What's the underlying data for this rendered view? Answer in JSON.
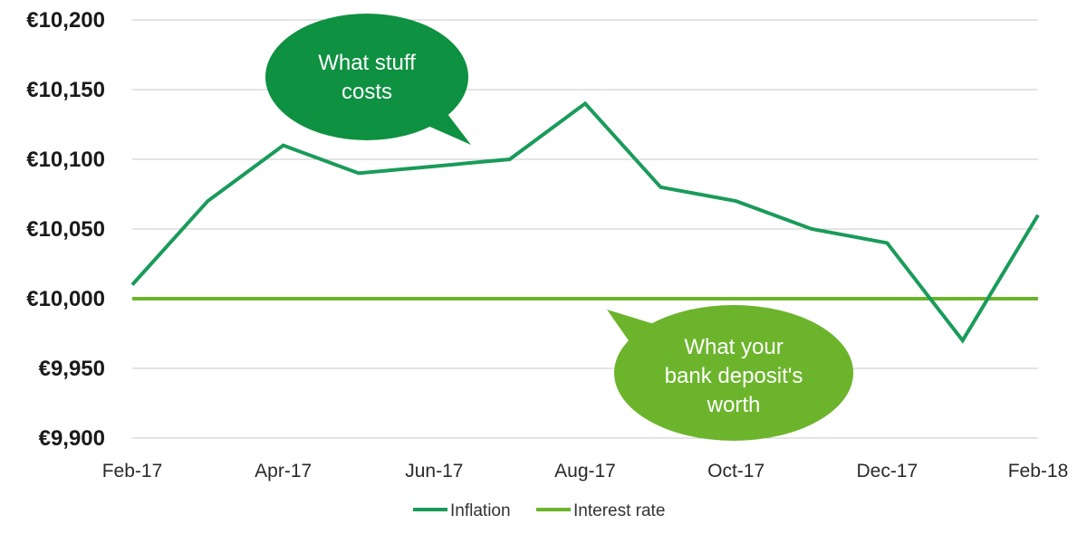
{
  "chart_data": {
    "type": "line",
    "x": [
      "Feb-17",
      "Mar-17",
      "Apr-17",
      "May-17",
      "Jun-17",
      "Jul-17",
      "Aug-17",
      "Sep-17",
      "Oct-17",
      "Nov-17",
      "Dec-17",
      "Jan-18",
      "Feb-18"
    ],
    "x_tick_labels": [
      "Feb-17",
      "Apr-17",
      "Jun-17",
      "Aug-17",
      "Oct-17",
      "Dec-17",
      "Feb-18"
    ],
    "y_tick_labels": [
      "€10,200",
      "€10,150",
      "€10,100",
      "€10,050",
      "€10,000",
      "€9,950",
      "€9,900"
    ],
    "y_ticks": [
      10200,
      10150,
      10100,
      10050,
      10000,
      9950,
      9900
    ],
    "ylim": [
      9900,
      10200
    ],
    "grid": true,
    "legend_position": "bottom",
    "series": [
      {
        "name": "Inflation",
        "color": "#1a9b5a",
        "values": [
          10010,
          10070,
          10110,
          10090,
          10095,
          10100,
          10140,
          10080,
          10070,
          10050,
          10040,
          9970,
          10060
        ],
        "x_start": "Feb-17",
        "x_end": "Feb-18"
      },
      {
        "name": "Interest rate",
        "color": "#6cb42c",
        "values": [
          10000,
          10000,
          10000,
          10000,
          10000,
          10000,
          10000,
          10000,
          10000,
          10000,
          10000,
          10000,
          10000
        ],
        "x_start": "Feb-17",
        "x_end": "Feb-18"
      }
    ],
    "annotations": [
      {
        "lines": [
          "What stuff",
          "costs"
        ],
        "color": "#0e9141"
      },
      {
        "lines": [
          "What your",
          "bank deposit's",
          "worth"
        ],
        "color": "#6cb42c"
      }
    ]
  }
}
